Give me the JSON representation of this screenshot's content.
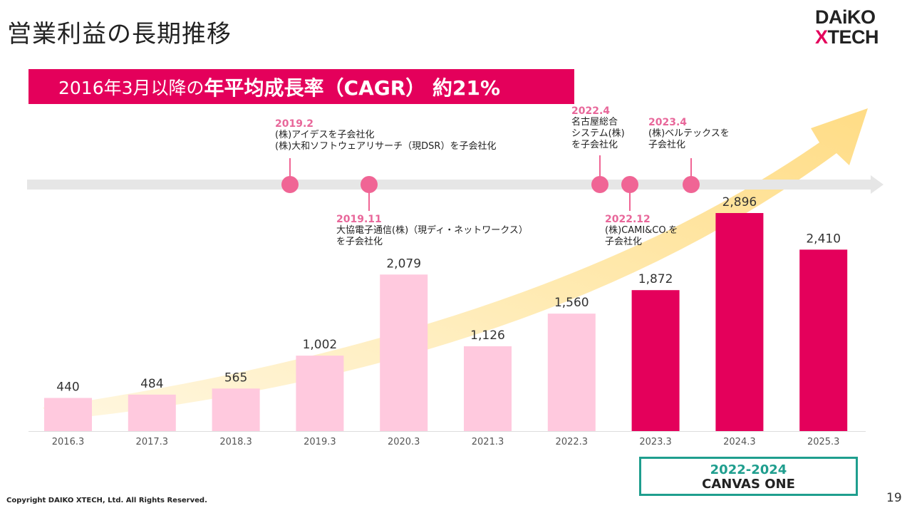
{
  "page": {
    "title": "営業利益の長期推移",
    "logo_line1_a": "DA",
    "logo_line1_b": "iKO",
    "logo_line2_x": "X",
    "logo_line2_rest": "TECH",
    "banner_prefix": "2016年3月以降の",
    "banner_emphasis": "年平均成長率（CAGR） 約21%",
    "copyright": "Copyright DAIKO XTECH, Ltd. All Rights Reserved.",
    "page_number": "19",
    "canvas_period": "2022-2024",
    "canvas_name": "CANVAS ONE"
  },
  "colors": {
    "accent": "#e4005b",
    "bar_light": "#ffc9de",
    "bar_dark": "#e4005b",
    "event_dot": "#f06595",
    "event_date": "#e8679a",
    "timeline": "#e6e6e6",
    "arrow": "#ffd77a",
    "teal": "#1f9e8e"
  },
  "events": [
    {
      "date": "2019.2",
      "lines": [
        "(株)アイデスを子会社化",
        "(株)大和ソフトウェアリサーチ（現DSR）を子会社化"
      ],
      "side": "above"
    },
    {
      "date": "2019.11",
      "lines": [
        "大協電子通信(株)（現ディ・ネットワークス）",
        "を子会社化"
      ],
      "side": "below"
    },
    {
      "date": "2022.4",
      "lines": [
        "名古屋総合",
        "システム(株)",
        "を子会社化"
      ],
      "side": "above"
    },
    {
      "date": "2022.12",
      "lines": [
        "(株)CAMI&CO.を",
        "子会社化"
      ],
      "side": "below"
    },
    {
      "date": "2023.4",
      "lines": [
        "(株)ベルテックスを",
        "子会社化"
      ],
      "side": "above"
    }
  ],
  "chart_data": {
    "type": "bar",
    "title": "営業利益の長期推移",
    "categories": [
      "2016.3",
      "2017.3",
      "2018.3",
      "2019.3",
      "2020.3",
      "2021.3",
      "2022.3",
      "2023.3",
      "2024.3",
      "2025.3"
    ],
    "values": [
      440,
      484,
      565,
      1002,
      2079,
      1126,
      1560,
      1872,
      2896,
      2410
    ],
    "value_labels": [
      "440",
      "484",
      "565",
      "1,002",
      "2,079",
      "1,126",
      "1,560",
      "1,872",
      "2,896",
      "2,410"
    ],
    "highlight_categories": [
      "2023.3",
      "2024.3",
      "2025.3"
    ],
    "xlabel": "",
    "ylabel": "",
    "grid": false,
    "legend": "none"
  }
}
